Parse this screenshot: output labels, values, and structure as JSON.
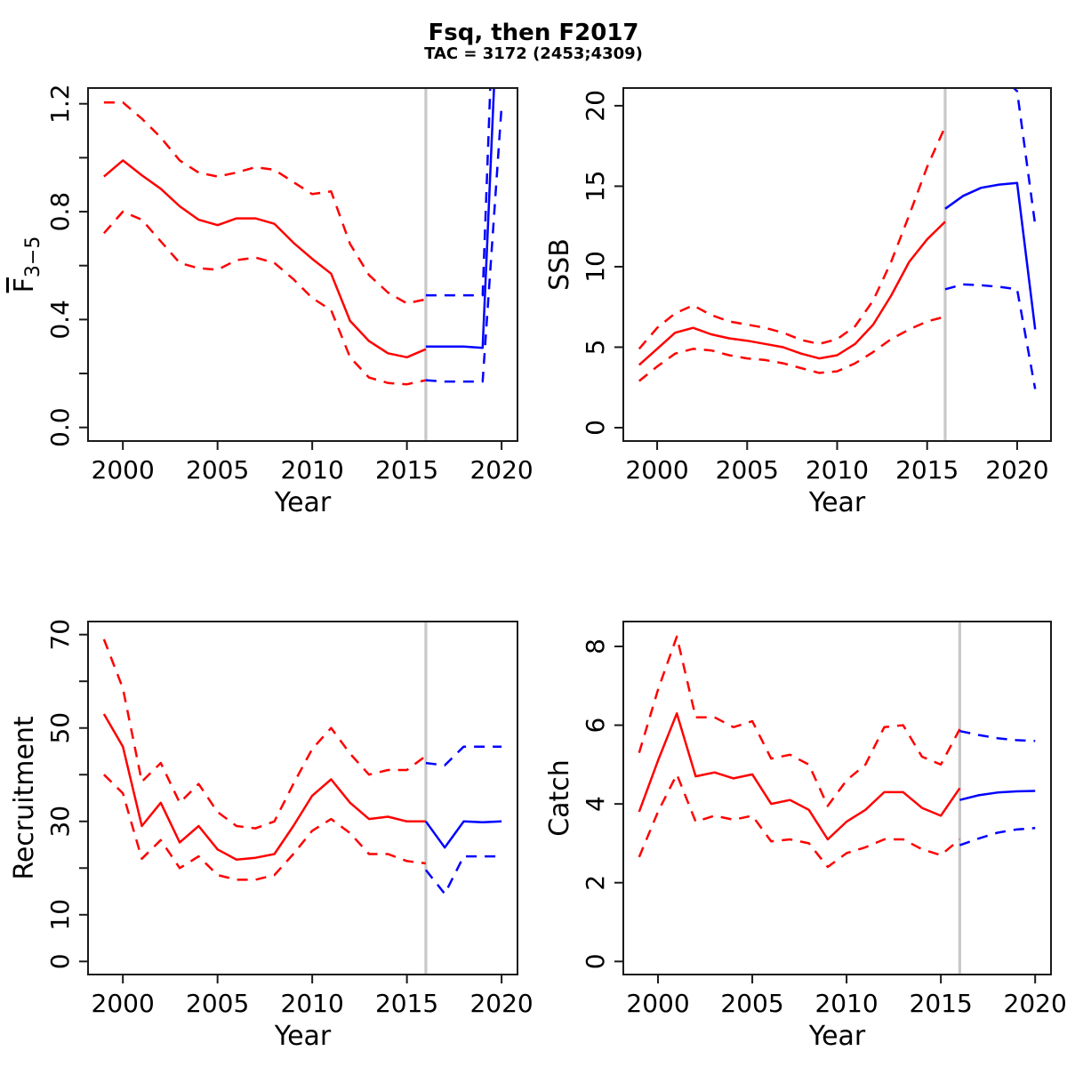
{
  "title": "Fsq, then F2017",
  "subtitle": "TAC = 3172 (2453;4309)",
  "colors": {
    "history": "#FF0000",
    "forecast": "#0000FF",
    "divider": "#C8C8C8",
    "axis": "#1a1a1a"
  },
  "divider_year": 2016,
  "chart_data": [
    {
      "id": "fbar",
      "type": "line",
      "xlabel": "Year",
      "ylabel": "F",
      "ylabel_sub": "3−5",
      "ylabel_overline": true,
      "xlim": [
        1998.16,
        2020.84
      ],
      "ylim": [
        -0.0504,
        1.2584
      ],
      "xticks": [
        {
          "v": 2000,
          "label": "2000"
        },
        {
          "v": 2005,
          "label": "2005"
        },
        {
          "v": 2010,
          "label": "2010"
        },
        {
          "v": 2015,
          "label": "2015"
        },
        {
          "v": 2020,
          "label": "2020"
        }
      ],
      "yticks": [
        {
          "v": 0,
          "label": "0.0"
        },
        {
          "v": 0.2,
          "label": ""
        },
        {
          "v": 0.4,
          "label": "0.4"
        },
        {
          "v": 0.6,
          "label": ""
        },
        {
          "v": 0.8,
          "label": "0.8"
        },
        {
          "v": 1.0,
          "label": ""
        },
        {
          "v": 1.2,
          "label": "1.2"
        }
      ],
      "series": [
        {
          "name": "history-upper-ci",
          "color": "history",
          "dashed": true,
          "x": [
            1999,
            2000,
            2001,
            2002,
            2003,
            2004,
            2005,
            2006,
            2007,
            2008,
            2009,
            2010,
            2011,
            2012,
            2013,
            2014,
            2015,
            2016
          ],
          "y": [
            1.205,
            1.205,
            1.145,
            1.075,
            0.99,
            0.945,
            0.93,
            0.945,
            0.965,
            0.955,
            0.91,
            0.865,
            0.875,
            0.68,
            0.565,
            0.5,
            0.46,
            0.475
          ]
        },
        {
          "name": "history-median",
          "color": "history",
          "dashed": false,
          "x": [
            1999,
            2000,
            2001,
            2002,
            2003,
            2004,
            2005,
            2006,
            2007,
            2008,
            2009,
            2010,
            2011,
            2012,
            2013,
            2014,
            2015,
            2016
          ],
          "y": [
            0.93,
            0.99,
            0.935,
            0.885,
            0.82,
            0.77,
            0.75,
            0.775,
            0.775,
            0.755,
            0.685,
            0.625,
            0.57,
            0.395,
            0.32,
            0.275,
            0.26,
            0.29
          ]
        },
        {
          "name": "history-lower-ci",
          "color": "history",
          "dashed": true,
          "x": [
            1999,
            2000,
            2001,
            2002,
            2003,
            2004,
            2005,
            2006,
            2007,
            2008,
            2009,
            2010,
            2011,
            2012,
            2013,
            2014,
            2015,
            2016
          ],
          "y": [
            0.72,
            0.8,
            0.77,
            0.69,
            0.61,
            0.59,
            0.585,
            0.62,
            0.63,
            0.61,
            0.55,
            0.48,
            0.435,
            0.26,
            0.185,
            0.165,
            0.16,
            0.175
          ]
        },
        {
          "name": "forecast-upper-ci",
          "color": "forecast",
          "dashed": true,
          "x": [
            2016,
            2017,
            2018,
            2019,
            2020
          ],
          "y": [
            0.49,
            0.49,
            0.49,
            0.49,
            2.4
          ]
        },
        {
          "name": "forecast-median",
          "color": "forecast",
          "dashed": false,
          "x": [
            2016,
            2017,
            2018,
            2019,
            2020
          ],
          "y": [
            0.3,
            0.3,
            0.3,
            0.295,
            1.9
          ]
        },
        {
          "name": "forecast-lower-ci",
          "color": "forecast",
          "dashed": true,
          "x": [
            2016,
            2017,
            2018,
            2019,
            2020
          ],
          "y": [
            0.175,
            0.17,
            0.17,
            0.17,
            1.19
          ]
        }
      ]
    },
    {
      "id": "ssb",
      "type": "line",
      "xlabel": "Year",
      "ylabel": "SSB",
      "xlim": [
        1998.12,
        2021.88
      ],
      "ylim": [
        -0.83,
        21.1
      ],
      "xticks": [
        {
          "v": 2000,
          "label": "2000"
        },
        {
          "v": 2005,
          "label": "2005"
        },
        {
          "v": 2010,
          "label": "2010"
        },
        {
          "v": 2015,
          "label": "2015"
        },
        {
          "v": 2020,
          "label": "2020"
        }
      ],
      "yticks": [
        {
          "v": 0,
          "label": "0"
        },
        {
          "v": 5,
          "label": "5"
        },
        {
          "v": 10,
          "label": "10"
        },
        {
          "v": 15,
          "label": "15"
        },
        {
          "v": 20,
          "label": "20"
        }
      ],
      "series": [
        {
          "name": "history-upper-ci",
          "color": "history",
          "dashed": true,
          "x": [
            1999,
            2000,
            2001,
            2002,
            2003,
            2004,
            2005,
            2006,
            2007,
            2008,
            2009,
            2010,
            2011,
            2012,
            2013,
            2014,
            2015,
            2016
          ],
          "y": [
            4.9,
            6.2,
            7.1,
            7.6,
            7.0,
            6.6,
            6.4,
            6.2,
            5.9,
            5.45,
            5.2,
            5.5,
            6.3,
            7.9,
            10.3,
            13.2,
            16.2,
            18.7
          ]
        },
        {
          "name": "history-median",
          "color": "history",
          "dashed": false,
          "x": [
            1999,
            2000,
            2001,
            2002,
            2003,
            2004,
            2005,
            2006,
            2007,
            2008,
            2009,
            2010,
            2011,
            2012,
            2013,
            2014,
            2015,
            2016
          ],
          "y": [
            3.9,
            4.9,
            5.9,
            6.2,
            5.8,
            5.55,
            5.4,
            5.2,
            5.0,
            4.6,
            4.3,
            4.5,
            5.2,
            6.4,
            8.2,
            10.3,
            11.7,
            12.8
          ]
        },
        {
          "name": "history-lower-ci",
          "color": "history",
          "dashed": true,
          "x": [
            1999,
            2000,
            2001,
            2002,
            2003,
            2004,
            2005,
            2006,
            2007,
            2008,
            2009,
            2010,
            2011,
            2012,
            2013,
            2014,
            2015,
            2016
          ],
          "y": [
            2.9,
            3.8,
            4.6,
            4.9,
            4.8,
            4.5,
            4.3,
            4.2,
            4.0,
            3.7,
            3.4,
            3.5,
            4.0,
            4.7,
            5.5,
            6.1,
            6.6,
            6.9
          ]
        },
        {
          "name": "forecast-upper-ci",
          "color": "forecast",
          "dashed": true,
          "x": [
            2016,
            2017,
            2018,
            2019,
            2020,
            2021
          ],
          "y": [
            21.5,
            22.3,
            22.4,
            22.0,
            20.9,
            12.6
          ]
        },
        {
          "name": "forecast-median",
          "color": "forecast",
          "dashed": false,
          "x": [
            2016,
            2017,
            2018,
            2019,
            2020,
            2021
          ],
          "y": [
            13.6,
            14.4,
            14.9,
            15.1,
            15.2,
            6.1
          ]
        },
        {
          "name": "forecast-lower-ci",
          "color": "forecast",
          "dashed": true,
          "x": [
            2016,
            2017,
            2018,
            2019,
            2020,
            2021
          ],
          "y": [
            8.6,
            8.9,
            8.85,
            8.75,
            8.6,
            2.4
          ]
        }
      ]
    },
    {
      "id": "recruitment",
      "type": "line",
      "xlabel": "Year",
      "ylabel": "Recruitment",
      "xlim": [
        1998.16,
        2020.84
      ],
      "ylim": [
        -2.8,
        72.8
      ],
      "xticks": [
        {
          "v": 2000,
          "label": "2000"
        },
        {
          "v": 2005,
          "label": "2005"
        },
        {
          "v": 2010,
          "label": "2010"
        },
        {
          "v": 2015,
          "label": "2015"
        },
        {
          "v": 2020,
          "label": "2020"
        }
      ],
      "yticks": [
        {
          "v": 0,
          "label": "0"
        },
        {
          "v": 10,
          "label": "10"
        },
        {
          "v": 20,
          "label": ""
        },
        {
          "v": 30,
          "label": "30"
        },
        {
          "v": 40,
          "label": ""
        },
        {
          "v": 50,
          "label": "50"
        },
        {
          "v": 60,
          "label": ""
        },
        {
          "v": 70,
          "label": "70"
        }
      ],
      "series": [
        {
          "name": "history-upper-ci",
          "color": "history",
          "dashed": true,
          "x": [
            1999,
            2000,
            2001,
            2002,
            2003,
            2004,
            2005,
            2006,
            2007,
            2008,
            2009,
            2010,
            2011,
            2012,
            2013,
            2014,
            2015,
            2016
          ],
          "y": [
            69,
            58.5,
            38.5,
            42.5,
            34,
            38,
            32,
            29,
            28.5,
            30,
            38,
            45.5,
            50,
            44.5,
            40,
            41,
            41,
            44
          ]
        },
        {
          "name": "history-median",
          "color": "history",
          "dashed": false,
          "x": [
            1999,
            2000,
            2001,
            2002,
            2003,
            2004,
            2005,
            2006,
            2007,
            2008,
            2009,
            2010,
            2011,
            2012,
            2013,
            2014,
            2015,
            2016
          ],
          "y": [
            53,
            46,
            29,
            34,
            25.5,
            29,
            24,
            21.8,
            22.2,
            23,
            29,
            35.5,
            39,
            34,
            30.5,
            31,
            30,
            30
          ]
        },
        {
          "name": "history-lower-ci",
          "color": "history",
          "dashed": true,
          "x": [
            1999,
            2000,
            2001,
            2002,
            2003,
            2004,
            2005,
            2006,
            2007,
            2008,
            2009,
            2010,
            2011,
            2012,
            2013,
            2014,
            2015,
            2016
          ],
          "y": [
            40,
            36,
            22,
            26,
            20,
            22.5,
            18.5,
            17.5,
            17.5,
            18.5,
            23,
            28,
            30.5,
            27.5,
            23,
            23,
            21.5,
            21
          ]
        },
        {
          "name": "forecast-upper-ci",
          "color": "forecast",
          "dashed": true,
          "x": [
            2016,
            2017,
            2018,
            2019,
            2020
          ],
          "y": [
            42.5,
            42,
            46,
            46,
            46
          ]
        },
        {
          "name": "forecast-median",
          "color": "forecast",
          "dashed": false,
          "x": [
            2016,
            2017,
            2018,
            2019,
            2020
          ],
          "y": [
            30,
            24.4,
            30,
            29.8,
            30
          ]
        },
        {
          "name": "forecast-lower-ci",
          "color": "forecast",
          "dashed": true,
          "x": [
            2016,
            2017,
            2018,
            2019,
            2020
          ],
          "y": [
            19.6,
            14.5,
            22.5,
            22.5,
            22.5
          ]
        }
      ]
    },
    {
      "id": "catch",
      "type": "line",
      "xlabel": "Year",
      "ylabel": "Catch",
      "xlim": [
        1998.16,
        2020.84
      ],
      "ylim": [
        -0.332,
        8.632
      ],
      "xticks": [
        {
          "v": 2000,
          "label": "2000"
        },
        {
          "v": 2005,
          "label": "2005"
        },
        {
          "v": 2010,
          "label": "2010"
        },
        {
          "v": 2015,
          "label": "2015"
        },
        {
          "v": 2020,
          "label": "2020"
        }
      ],
      "yticks": [
        {
          "v": 0,
          "label": "0"
        },
        {
          "v": 2,
          "label": "2"
        },
        {
          "v": 4,
          "label": "4"
        },
        {
          "v": 6,
          "label": "6"
        },
        {
          "v": 8,
          "label": "8"
        }
      ],
      "series": [
        {
          "name": "history-upper-ci",
          "color": "history",
          "dashed": true,
          "x": [
            1999,
            2000,
            2001,
            2002,
            2003,
            2004,
            2005,
            2006,
            2007,
            2008,
            2009,
            2010,
            2011,
            2012,
            2013,
            2014,
            2015,
            2016
          ],
          "y": [
            5.3,
            6.9,
            8.25,
            6.2,
            6.2,
            5.95,
            6.1,
            5.15,
            5.25,
            5.0,
            3.95,
            4.6,
            5.0,
            5.95,
            6.0,
            5.2,
            5.0,
            5.9
          ]
        },
        {
          "name": "history-median",
          "color": "history",
          "dashed": false,
          "x": [
            1999,
            2000,
            2001,
            2002,
            2003,
            2004,
            2005,
            2006,
            2007,
            2008,
            2009,
            2010,
            2011,
            2012,
            2013,
            2014,
            2015,
            2016
          ],
          "y": [
            3.8,
            5.1,
            6.3,
            4.7,
            4.8,
            4.65,
            4.75,
            4.0,
            4.1,
            3.85,
            3.1,
            3.55,
            3.85,
            4.3,
            4.3,
            3.9,
            3.7,
            4.4
          ]
        },
        {
          "name": "history-lower-ci",
          "color": "history",
          "dashed": true,
          "x": [
            1999,
            2000,
            2001,
            2002,
            2003,
            2004,
            2005,
            2006,
            2007,
            2008,
            2009,
            2010,
            2011,
            2012,
            2013,
            2014,
            2015,
            2016
          ],
          "y": [
            2.65,
            3.8,
            4.75,
            3.55,
            3.7,
            3.6,
            3.7,
            3.05,
            3.1,
            3.0,
            2.4,
            2.75,
            2.9,
            3.1,
            3.1,
            2.85,
            2.7,
            3.1
          ]
        },
        {
          "name": "forecast-upper-ci",
          "color": "forecast",
          "dashed": true,
          "x": [
            2016,
            2017,
            2018,
            2019,
            2020
          ],
          "y": [
            5.85,
            5.75,
            5.67,
            5.62,
            5.6
          ]
        },
        {
          "name": "forecast-median",
          "color": "forecast",
          "dashed": false,
          "x": [
            2016,
            2017,
            2018,
            2019,
            2020
          ],
          "y": [
            4.1,
            4.22,
            4.29,
            4.32,
            4.33
          ]
        },
        {
          "name": "forecast-lower-ci",
          "color": "forecast",
          "dashed": true,
          "x": [
            2016,
            2017,
            2018,
            2019,
            2020
          ],
          "y": [
            2.95,
            3.12,
            3.27,
            3.35,
            3.39
          ]
        }
      ]
    }
  ]
}
